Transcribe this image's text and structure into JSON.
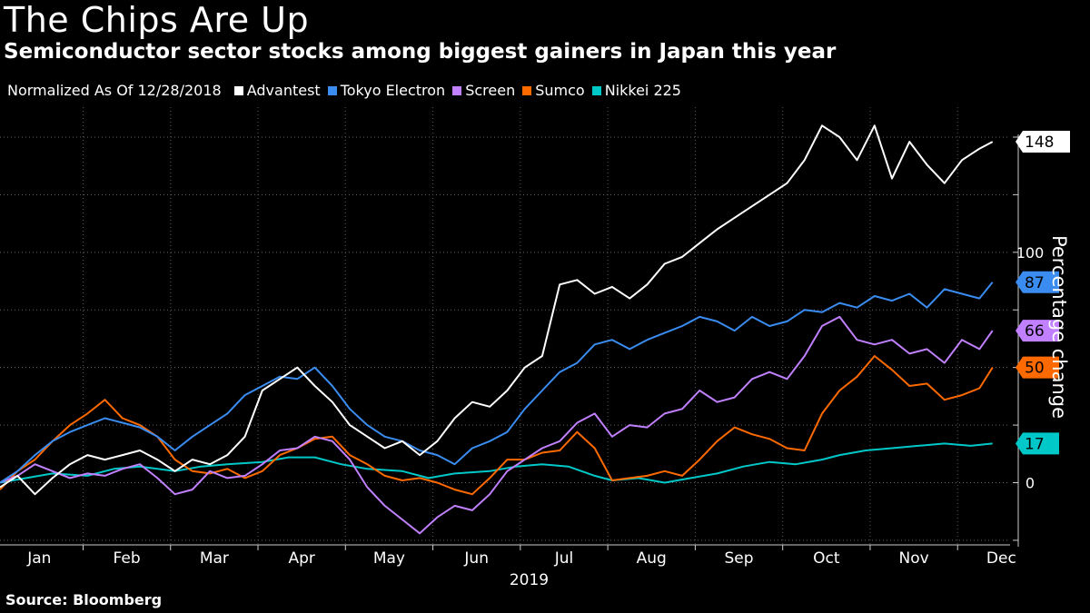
{
  "chart_data": {
    "type": "line",
    "title": "The Chips Are Up",
    "subtitle": "Semiconductor sector stocks among biggest gainers in Japan this year",
    "legend_note": "Normalized As Of 12/28/2018",
    "source": "Source: Bloomberg",
    "xlabel": "2019",
    "ylabel": "Percentage change",
    "x_categories": [
      "Jan",
      "Feb",
      "Mar",
      "Apr",
      "May",
      "Jun",
      "Jul",
      "Aug",
      "Sep",
      "Oct",
      "Nov",
      "Dec"
    ],
    "yticks": [
      0,
      50,
      100
    ],
    "ylim": [
      -27,
      163
    ],
    "xlim": [
      0,
      11.55
    ],
    "grid": true,
    "series": [
      {
        "name": "Nikkei 225",
        "color": "#00c8c8",
        "last_label": "17",
        "x": [
          0,
          0.3,
          0.6,
          1,
          1.3,
          1.6,
          2,
          2.3,
          2.6,
          3,
          3.3,
          3.6,
          3.9,
          4.2,
          4.6,
          4.9,
          5.2,
          5.6,
          5.9,
          6.2,
          6.5,
          6.8,
          7,
          7.3,
          7.6,
          7.9,
          8.2,
          8.5,
          8.8,
          9.1,
          9.4,
          9.6,
          9.9,
          10.2,
          10.5,
          10.8,
          11.1,
          11.35
        ],
        "y": [
          0,
          2,
          4,
          3,
          6,
          7,
          5,
          7,
          8,
          9,
          11,
          11,
          8,
          6,
          5,
          2,
          4,
          5,
          7,
          8,
          7,
          3,
          1,
          2,
          0,
          2,
          4,
          7,
          9,
          8,
          10,
          12,
          14,
          15,
          16,
          17,
          16,
          17
        ]
      },
      {
        "name": "Sumco",
        "color": "#ff6a00",
        "last_label": "50",
        "x": [
          0,
          0.2,
          0.4,
          0.6,
          0.8,
          1,
          1.2,
          1.4,
          1.6,
          1.8,
          2,
          2.2,
          2.4,
          2.6,
          2.8,
          3,
          3.2,
          3.4,
          3.6,
          3.8,
          4,
          4.2,
          4.4,
          4.6,
          4.8,
          5,
          5.2,
          5.4,
          5.6,
          5.8,
          6,
          6.2,
          6.4,
          6.6,
          6.8,
          7,
          7.2,
          7.4,
          7.6,
          7.8,
          8,
          8.2,
          8.4,
          8.6,
          8.8,
          9,
          9.2,
          9.4,
          9.6,
          9.8,
          10,
          10.2,
          10.4,
          10.6,
          10.8,
          11,
          11.2,
          11.35
        ],
        "y": [
          -3,
          5,
          10,
          18,
          25,
          30,
          36,
          28,
          25,
          20,
          10,
          5,
          4,
          6,
          2,
          5,
          12,
          15,
          19,
          20,
          12,
          8,
          3,
          1,
          2,
          0,
          -3,
          -5,
          2,
          10,
          10,
          13,
          14,
          22,
          15,
          1,
          2,
          3,
          5,
          3,
          10,
          18,
          24,
          21,
          19,
          15,
          14,
          30,
          40,
          46,
          55,
          49,
          42,
          43,
          36,
          38,
          41,
          50
        ]
      },
      {
        "name": "Screen",
        "color": "#c080ff",
        "last_label": "66",
        "x": [
          0,
          0.2,
          0.4,
          0.6,
          0.8,
          1,
          1.2,
          1.4,
          1.6,
          1.8,
          2,
          2.2,
          2.4,
          2.6,
          2.8,
          3,
          3.2,
          3.4,
          3.6,
          3.8,
          4,
          4.2,
          4.4,
          4.6,
          4.8,
          5,
          5.2,
          5.4,
          5.6,
          5.8,
          6,
          6.2,
          6.4,
          6.6,
          6.8,
          7,
          7.2,
          7.4,
          7.6,
          7.8,
          8,
          8.2,
          8.4,
          8.6,
          8.8,
          9,
          9.2,
          9.4,
          9.6,
          9.8,
          10,
          10.2,
          10.4,
          10.6,
          10.8,
          11,
          11.2,
          11.35
        ],
        "y": [
          0,
          3,
          8,
          5,
          2,
          4,
          3,
          6,
          8,
          2,
          -5,
          -3,
          5,
          2,
          3,
          8,
          14,
          15,
          20,
          18,
          10,
          -2,
          -10,
          -16,
          -22,
          -15,
          -10,
          -12,
          -5,
          5,
          10,
          15,
          18,
          26,
          30,
          20,
          25,
          24,
          30,
          32,
          40,
          35,
          37,
          45,
          48,
          45,
          55,
          68,
          72,
          62,
          60,
          62,
          56,
          58,
          52,
          62,
          58,
          66
        ]
      },
      {
        "name": "Tokyo Electron",
        "color": "#3a8cf0",
        "last_label": "87",
        "x": [
          0,
          0.2,
          0.4,
          0.6,
          0.8,
          1,
          1.2,
          1.4,
          1.6,
          1.8,
          2,
          2.2,
          2.4,
          2.6,
          2.8,
          3,
          3.2,
          3.4,
          3.6,
          3.8,
          4,
          4.2,
          4.4,
          4.6,
          4.8,
          5,
          5.2,
          5.4,
          5.6,
          5.8,
          6,
          6.2,
          6.4,
          6.6,
          6.8,
          7,
          7.2,
          7.4,
          7.6,
          7.8,
          8,
          8.2,
          8.4,
          8.6,
          8.8,
          9,
          9.2,
          9.4,
          9.6,
          9.8,
          10,
          10.2,
          10.4,
          10.6,
          10.8,
          11,
          11.2,
          11.35
        ],
        "y": [
          0,
          5,
          12,
          18,
          22,
          25,
          28,
          26,
          24,
          20,
          14,
          20,
          25,
          30,
          38,
          42,
          46,
          45,
          50,
          42,
          32,
          25,
          20,
          18,
          14,
          12,
          8,
          15,
          18,
          22,
          32,
          40,
          48,
          52,
          60,
          62,
          58,
          62,
          65,
          68,
          72,
          70,
          66,
          72,
          68,
          70,
          75,
          74,
          78,
          76,
          81,
          79,
          82,
          76,
          84,
          82,
          80,
          87
        ]
      },
      {
        "name": "Advantest",
        "color": "#ffffff",
        "last_label": "148",
        "x": [
          0,
          0.2,
          0.4,
          0.6,
          0.8,
          1,
          1.2,
          1.4,
          1.6,
          1.8,
          2,
          2.2,
          2.4,
          2.6,
          2.8,
          3,
          3.2,
          3.4,
          3.6,
          3.8,
          4,
          4.2,
          4.4,
          4.6,
          4.8,
          5,
          5.2,
          5.4,
          5.6,
          5.8,
          6,
          6.2,
          6.4,
          6.6,
          6.8,
          7,
          7.2,
          7.4,
          7.6,
          7.8,
          8,
          8.2,
          8.4,
          8.6,
          8.8,
          9,
          9.2,
          9.4,
          9.6,
          9.8,
          10,
          10.2,
          10.4,
          10.6,
          10.8,
          11,
          11.2,
          11.35
        ],
        "y": [
          -2,
          3,
          -5,
          2,
          8,
          12,
          10,
          12,
          14,
          10,
          5,
          10,
          8,
          12,
          20,
          40,
          45,
          50,
          42,
          35,
          25,
          20,
          15,
          18,
          12,
          18,
          28,
          35,
          33,
          40,
          50,
          55,
          86,
          88,
          82,
          85,
          80,
          86,
          95,
          98,
          104,
          110,
          115,
          120,
          125,
          130,
          140,
          155,
          150,
          140,
          155,
          132,
          148,
          138,
          130,
          140,
          145,
          148
        ]
      }
    ]
  }
}
